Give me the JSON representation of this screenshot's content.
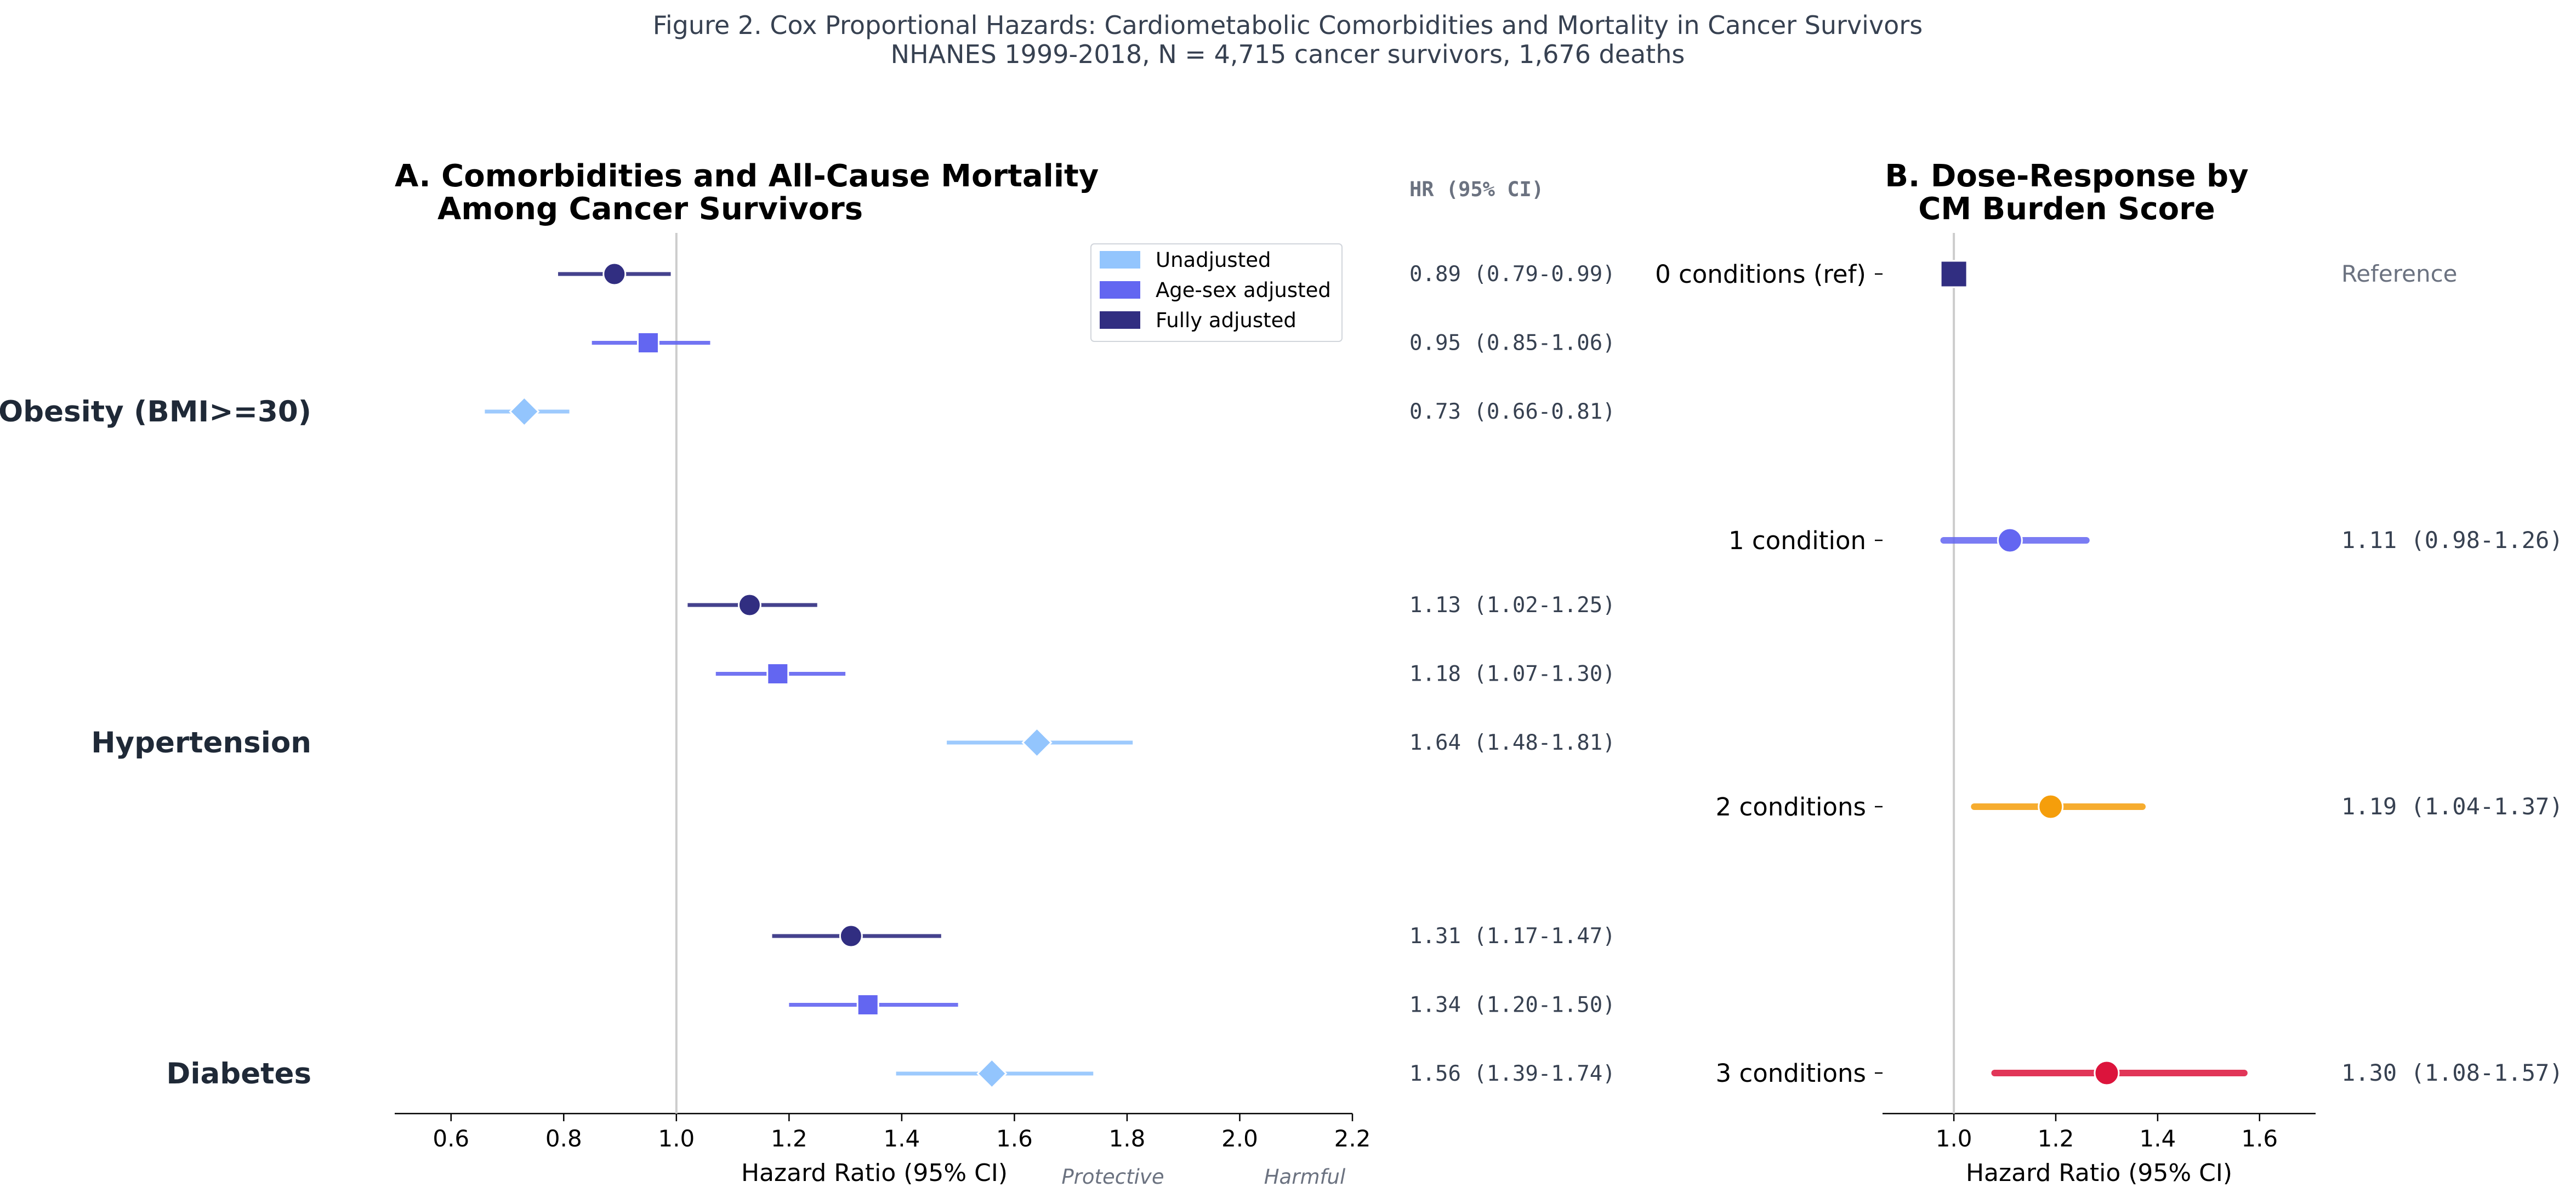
{
  "figure": {
    "suptitle_line1": "Figure 2. Cox Proportional Hazards: Cardiometabolic Comorbidities and Mortality in Cancer Survivors",
    "suptitle_line2": "NHANES 1999-2018, N = 4,715 cancer survivors, 1,676 deaths"
  },
  "colors": {
    "unadjusted": "#93c5fd",
    "age_sex": "#6366f1",
    "fully": "#312e81",
    "reference_line": "#cccccc",
    "dose_ref": "#312e81",
    "dose_1": "#6366f1",
    "dose_2": "#f59e0b",
    "dose_3": "#dc143c"
  },
  "chart_data": [
    {
      "type": "forest",
      "panel": "A",
      "title_line1": "A. Comorbidities and All-Cause Mortality",
      "title_line2": "Among Cancer Survivors",
      "xlabel": "Hazard Ratio (95% CI)",
      "xlim": [
        0.5,
        2.2
      ],
      "xticks": [
        "0.6",
        "0.8",
        "1.0",
        "1.2",
        "1.4",
        "1.6",
        "1.8",
        "2.0",
        "2.2"
      ],
      "reference_value": 1.0,
      "protective_label": "Protective",
      "harmful_label": "Harmful",
      "hr_header": "HR (95% CI)",
      "legend": {
        "position": "top-right",
        "entries": [
          "Unadjusted",
          "Age-sex adjusted",
          "Fully adjusted"
        ]
      },
      "groups": [
        {
          "label": "Obesity (BMI>=30)",
          "rows": [
            {
              "model": "Fully adjusted",
              "hr": 0.89,
              "lo": 0.79,
              "hi": 0.99,
              "text": "0.89 (0.79-0.99)"
            },
            {
              "model": "Age-sex adjusted",
              "hr": 0.95,
              "lo": 0.85,
              "hi": 1.06,
              "text": "0.95 (0.85-1.06)"
            },
            {
              "model": "Unadjusted",
              "hr": 0.73,
              "lo": 0.66,
              "hi": 0.81,
              "text": "0.73 (0.66-0.81)"
            }
          ]
        },
        {
          "label": "Hypertension",
          "rows": [
            {
              "model": "Fully adjusted",
              "hr": 1.13,
              "lo": 1.02,
              "hi": 1.25,
              "text": "1.13 (1.02-1.25)"
            },
            {
              "model": "Age-sex adjusted",
              "hr": 1.18,
              "lo": 1.07,
              "hi": 1.3,
              "text": "1.18 (1.07-1.30)"
            },
            {
              "model": "Unadjusted",
              "hr": 1.64,
              "lo": 1.48,
              "hi": 1.81,
              "text": "1.64 (1.48-1.81)"
            }
          ]
        },
        {
          "label": "Diabetes",
          "rows": [
            {
              "model": "Fully adjusted",
              "hr": 1.31,
              "lo": 1.17,
              "hi": 1.47,
              "text": "1.31 (1.17-1.47)"
            },
            {
              "model": "Age-sex adjusted",
              "hr": 1.34,
              "lo": 1.2,
              "hi": 1.5,
              "text": "1.34 (1.20-1.50)"
            },
            {
              "model": "Unadjusted",
              "hr": 1.56,
              "lo": 1.39,
              "hi": 1.74,
              "text": "1.56 (1.39-1.74)"
            }
          ]
        }
      ]
    },
    {
      "type": "forest",
      "panel": "B",
      "title_line1": "B. Dose-Response by",
      "title_line2": "CM Burden Score",
      "xlabel": "Hazard Ratio (95% CI)",
      "xlim": [
        0.86,
        1.71
      ],
      "xticks": [
        "1.0",
        "1.2",
        "1.4",
        "1.6"
      ],
      "reference_value": 1.0,
      "rows": [
        {
          "label": "0 conditions (ref)",
          "hr": 1.0,
          "lo": null,
          "hi": null,
          "text": "Reference"
        },
        {
          "label": "1 condition",
          "hr": 1.11,
          "lo": 0.98,
          "hi": 1.26,
          "text": "1.11 (0.98-1.26)"
        },
        {
          "label": "2 conditions",
          "hr": 1.19,
          "lo": 1.04,
          "hi": 1.37,
          "text": "1.19 (1.04-1.37)"
        },
        {
          "label": "3 conditions",
          "hr": 1.3,
          "lo": 1.08,
          "hi": 1.57,
          "text": "1.30 (1.08-1.57)"
        }
      ]
    }
  ]
}
